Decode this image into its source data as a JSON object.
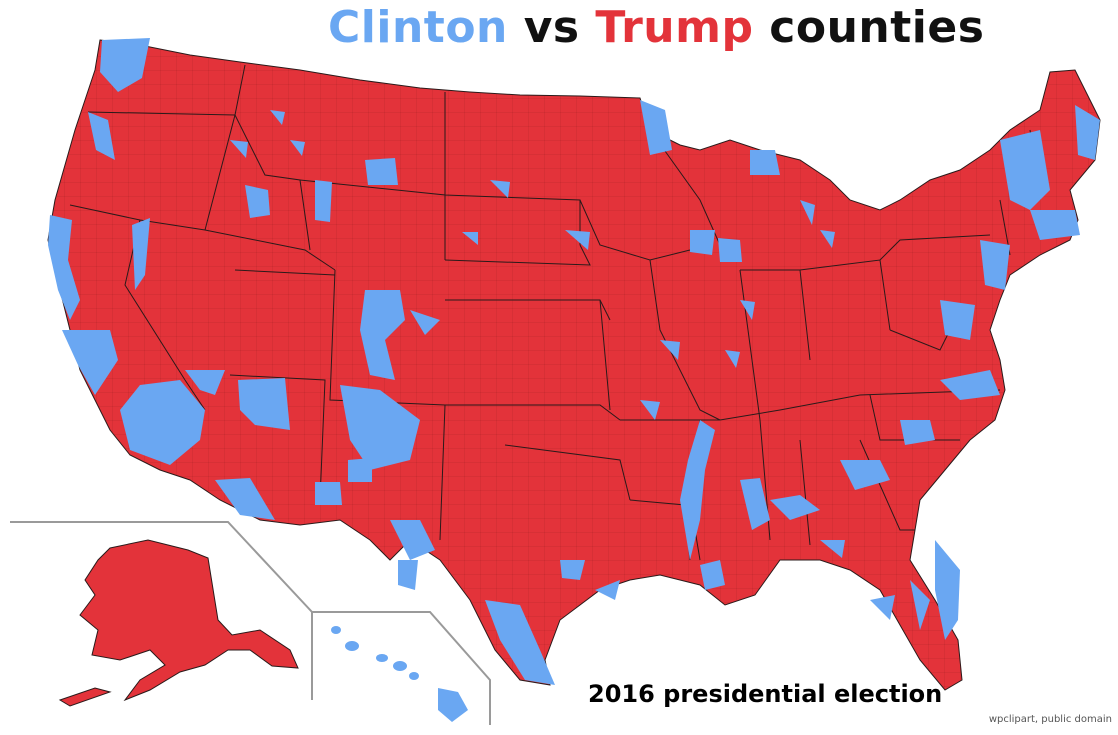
{
  "title": {
    "clinton": "Clinton",
    "vs": "vs",
    "trump": "Trump",
    "counties": "counties"
  },
  "subtitle": "2016 presidential election",
  "credit": "wpclipart, public domain",
  "colors": {
    "clinton": "#6aa7f2",
    "trump": "#e3333a",
    "title_text": "#111111",
    "border": "#2a1a1a",
    "inset_frame": "#9a9a9a"
  },
  "map": {
    "regions": [
      "contiguous-us",
      "alaska-inset",
      "hawaii-inset"
    ]
  }
}
